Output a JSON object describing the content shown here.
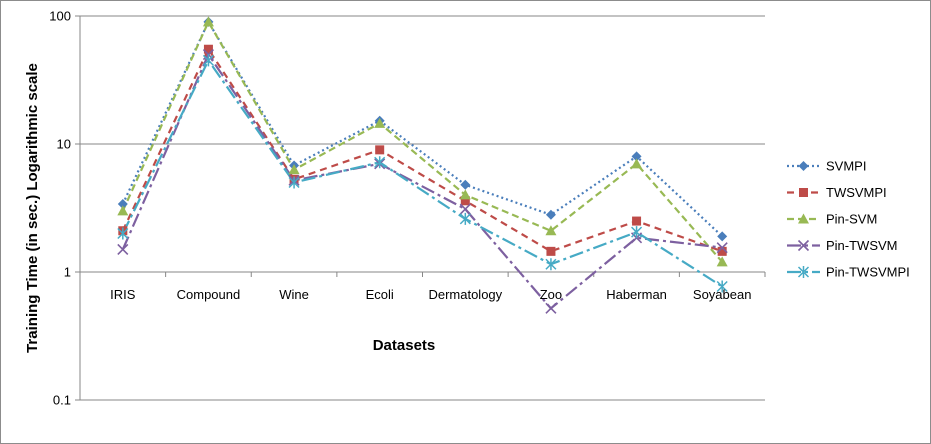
{
  "chart_data": {
    "type": "line",
    "title": "",
    "xlabel": "Datasets",
    "ylabel": "Training Time (in sec.) Logarithmic scale",
    "yscale": "log",
    "ylim": [
      0.1,
      100
    ],
    "yticks": [
      "0.1",
      "1",
      "10",
      "100"
    ],
    "grid": true,
    "legend_position": "right",
    "categories": [
      "IRIS",
      "Compound",
      "Wine",
      "Ecoli",
      "Dermatology",
      "Zoo",
      "Haberman",
      "Soyabean"
    ],
    "series": [
      {
        "name": "SVMPI",
        "values": [
          3.4,
          90,
          6.8,
          15.2,
          4.8,
          2.8,
          8,
          1.9
        ],
        "color": "#4a7ebb",
        "marker": "diamond",
        "dash": "2,3"
      },
      {
        "name": "TWSVMPI",
        "values": [
          2.1,
          55,
          5.3,
          9,
          3.6,
          1.45,
          2.5,
          1.45
        ],
        "color": "#be4b48",
        "marker": "square",
        "dash": "7,5"
      },
      {
        "name": "Pin-SVM",
        "values": [
          3.0,
          90,
          6.3,
          14.5,
          4.0,
          2.1,
          7,
          1.2
        ],
        "color": "#98b954",
        "marker": "triangle",
        "dash": "7,4"
      },
      {
        "name": "Pin-TWSVM",
        "values": [
          1.5,
          50,
          5.2,
          7,
          3.1,
          0.52,
          1.85,
          1.55
        ],
        "color": "#7d60a0",
        "marker": "x",
        "dash": "14,4,3,4"
      },
      {
        "name": "Pin-TWSVMPI",
        "values": [
          2.0,
          45,
          5.0,
          7.2,
          2.6,
          1.15,
          2.05,
          0.77
        ],
        "color": "#46aac5",
        "marker": "star",
        "dash": "14,4,3,4"
      }
    ]
  }
}
